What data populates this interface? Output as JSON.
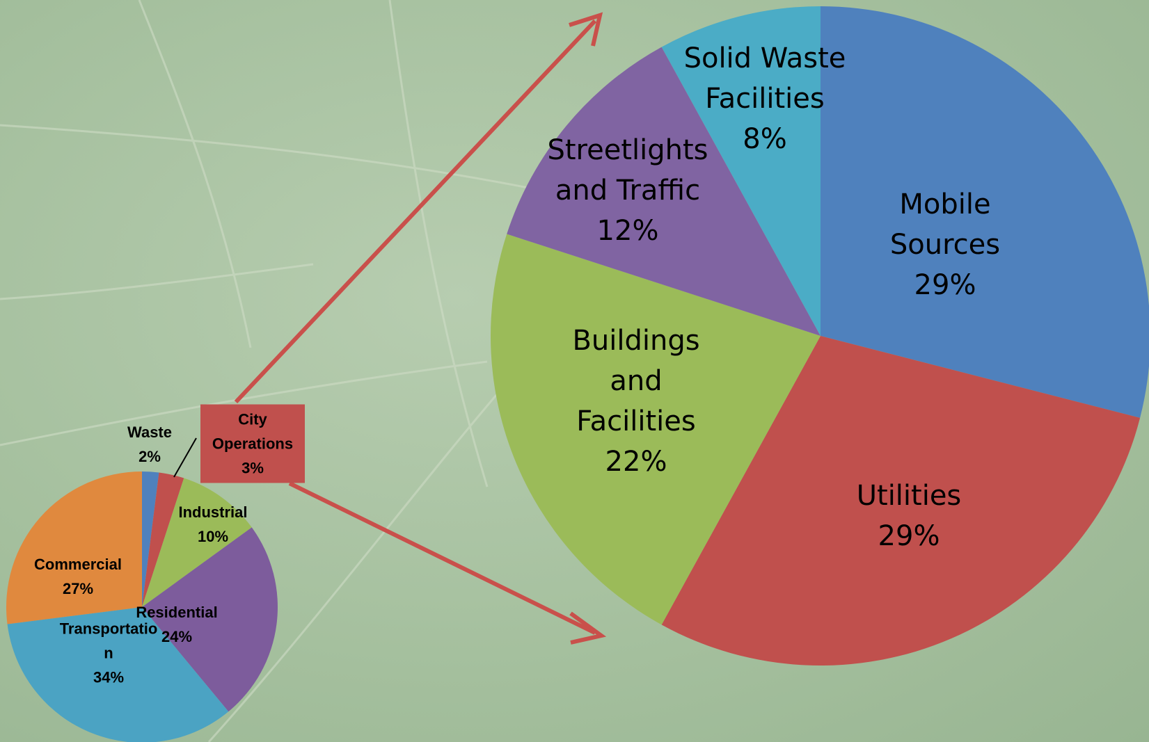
{
  "chart_data": [
    {
      "type": "pie",
      "categories": [
        "Waste",
        "City Operations",
        "Industrial",
        "Residential",
        "Transportation",
        "Commercial"
      ],
      "values": [
        2,
        3,
        10,
        24,
        34,
        27
      ],
      "value_labels": [
        "2%",
        "3%",
        "10%",
        "24%",
        "34%",
        "27%"
      ],
      "colors": [
        "#4f81bd",
        "#c0504d",
        "#9bbb59",
        "#7d5c9c",
        "#4ba3c3",
        "#e0893e"
      ]
    },
    {
      "type": "pie",
      "categories": [
        "Mobile Sources",
        "Utilities",
        "Buildings and Facilities",
        "Streetlights and Traffic",
        "Solid Waste Facilities"
      ],
      "values": [
        29,
        29,
        22,
        12,
        8
      ],
      "value_labels": [
        "29%",
        "29%",
        "22%",
        "12%",
        "8%"
      ],
      "colors": [
        "#4f81bd",
        "#c0504d",
        "#9bbb59",
        "#8064a2",
        "#4bacc6"
      ]
    }
  ]
}
